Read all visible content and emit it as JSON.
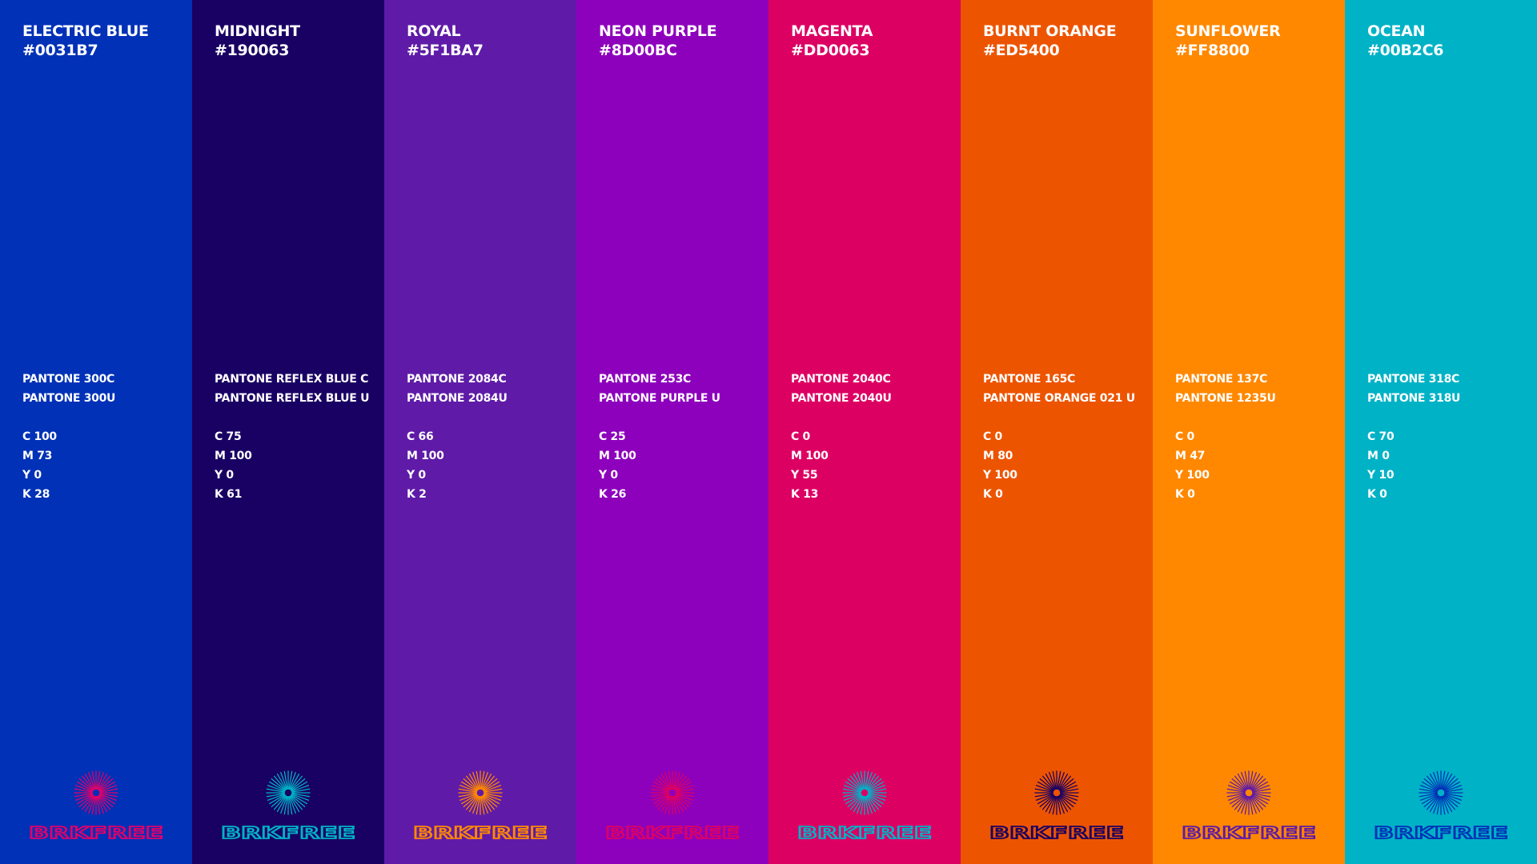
{
  "swatches": [
    {
      "name": "ELECTRIC BLUE",
      "hex": "#0031B7",
      "pantone": [
        "PANTONE 300C",
        "PANTONE 300U"
      ],
      "cmyk": [
        "C 100",
        "M 73",
        "Y 0",
        "K 28"
      ],
      "background": "#0031B7",
      "logo_color": "#E0006A",
      "logo_text": "BRKFREE"
    },
    {
      "name": "MIDNIGHT",
      "hex": "#190063",
      "pantone": [
        "PANTONE REFLEX BLUE C",
        "PANTONE REFLEX BLUE U"
      ],
      "cmyk": [
        "C 75",
        "M 100",
        "Y 0",
        "K 61"
      ],
      "background": "#190063",
      "logo_color": "#00B2C6",
      "logo_text": "BRKFREE"
    },
    {
      "name": "ROYAL",
      "hex": "#5F1BA7",
      "pantone": [
        "PANTONE 2084C",
        "PANTONE 2084U"
      ],
      "cmyk": [
        "C 66",
        "M 100",
        "Y 0",
        "K 2"
      ],
      "background": "#5F1BA7",
      "logo_color": "#FF8800",
      "logo_text": "BRKFREE"
    },
    {
      "name": "NEON PURPLE",
      "hex": "#8D00BC",
      "pantone": [
        "PANTONE 253C",
        "PANTONE PURPLE U"
      ],
      "cmyk": [
        "C 25",
        "M 100",
        "Y 0",
        "K 26"
      ],
      "background": "#8D00BC",
      "logo_color": "#DD0063",
      "logo_text": "BRKFREE"
    },
    {
      "name": "MAGENTA",
      "hex": "#DD0063",
      "pantone": [
        "PANTONE 2040C",
        "PANTONE 2040U"
      ],
      "cmyk": [
        "C 0",
        "M 100",
        "Y 55",
        "K 13"
      ],
      "background": "#DD0063",
      "logo_color": "#00B2C6",
      "logo_text": "BRKFREE"
    },
    {
      "name": "BURNT ORANGE",
      "hex": "#ED5400",
      "pantone": [
        "PANTONE 165C",
        "PANTONE ORANGE 021 U"
      ],
      "cmyk": [
        "C 0",
        "M 80",
        "Y 100",
        "K 0"
      ],
      "background": "#ED5400",
      "logo_color": "#190063",
      "logo_text": "BRKFREE"
    },
    {
      "name": "SUNFLOWER",
      "hex": "#FF8800",
      "pantone": [
        "PANTONE 137C",
        "PANTONE 1235U"
      ],
      "cmyk": [
        "C 0",
        "M 47",
        "Y 100",
        "K 0"
      ],
      "background": "#FF8800",
      "logo_color": "#5F1BA7",
      "logo_text": "BRKFREE"
    },
    {
      "name": "OCEAN",
      "hex": "#00B2C6",
      "pantone": [
        "PANTONE 318C",
        "PANTONE 318U"
      ],
      "cmyk": [
        "C 70",
        "M 0",
        "Y 10",
        "K 0"
      ],
      "background": "#00B2C6",
      "logo_color": "#0031B7",
      "logo_text": "BRKFREE"
    }
  ]
}
